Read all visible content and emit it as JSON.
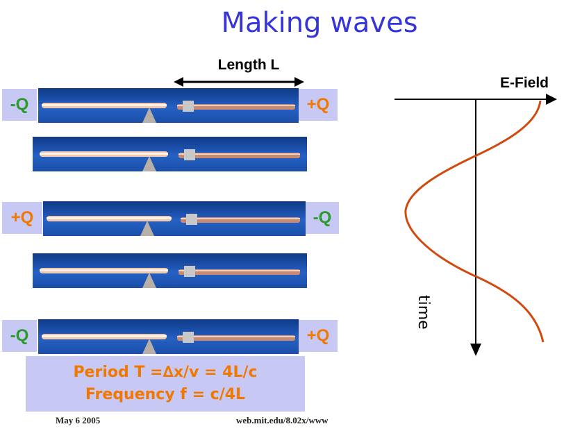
{
  "title": "Making waves",
  "length_label": "Length L",
  "efield_label": "E-Field",
  "time_label": "time",
  "rows": [
    {
      "left_charge": "-Q",
      "right_charge": "+Q"
    },
    {
      "left_charge": "",
      "right_charge": ""
    },
    {
      "left_charge": "+Q",
      "right_charge": "-Q"
    },
    {
      "left_charge": "",
      "right_charge": ""
    },
    {
      "left_charge": "-Q",
      "right_charge": "+Q"
    }
  ],
  "formula": {
    "period": "Period T =∆x/v = 4L/c",
    "frequency": "Frequency f = c/4L"
  },
  "footer": {
    "date": "May 6 2005",
    "url": "web.mit.edu/8.02x/www"
  },
  "colors": {
    "title": "#3535d8",
    "charge_neg": "#2a9a2a",
    "charge_pos": "#f07800",
    "wave": "#d04a10",
    "label_box": "#c8c8f4"
  }
}
